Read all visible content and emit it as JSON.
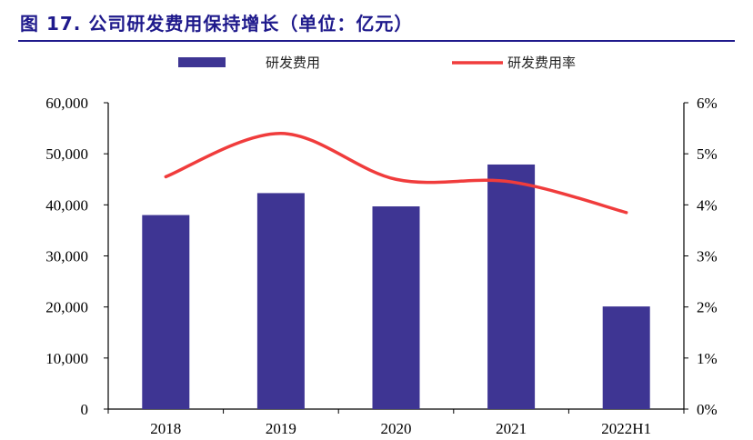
{
  "title": "图 17. 公司研发费用保持增长（单位：亿元）",
  "chart_data": {
    "type": "bar",
    "categories": [
      "2018",
      "2019",
      "2020",
      "2021",
      "2022H1"
    ],
    "series": [
      {
        "name": "研发费用",
        "type": "bar",
        "axis": "left",
        "color": "#3e3593",
        "values": [
          38000,
          42300,
          39700,
          47900,
          20100
        ]
      },
      {
        "name": "研发费用率",
        "type": "line",
        "axis": "right",
        "color": "#f03c3c",
        "values": [
          4.55,
          5.4,
          4.5,
          4.45,
          3.85
        ]
      }
    ],
    "y_left": {
      "ylim": [
        0,
        60000
      ],
      "ticks": [
        "0",
        "10,000",
        "20,000",
        "30,000",
        "40,000",
        "50,000",
        "60,000"
      ]
    },
    "y_right": {
      "ylim": [
        0,
        6
      ],
      "ticks": [
        "0%",
        "1%",
        "2%",
        "3%",
        "4%",
        "5%",
        "6%"
      ]
    },
    "legend": "top",
    "grid": false
  }
}
